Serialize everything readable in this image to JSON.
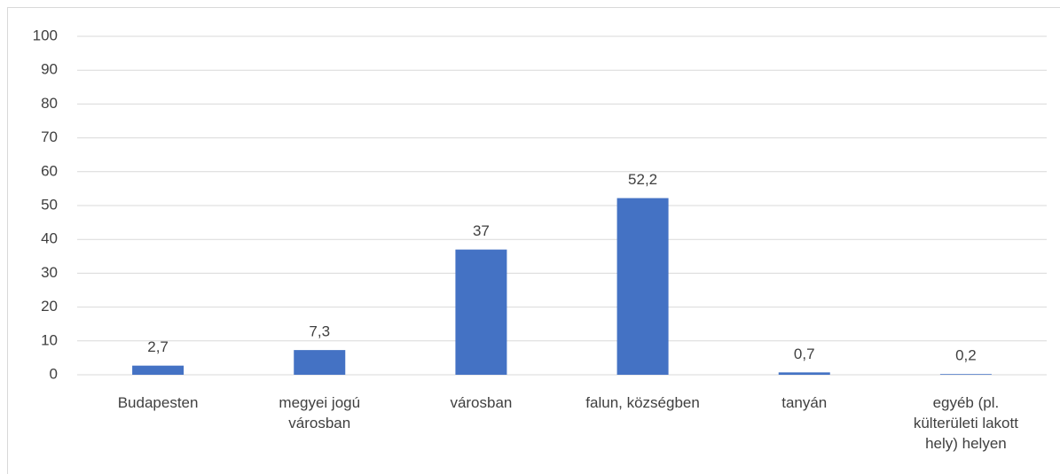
{
  "chart_data": {
    "type": "bar",
    "categories": [
      "Budapesten",
      "megyei jogú városban",
      "városban",
      "falun, községben",
      "tanyán",
      "egyéb (pl. külterületi lakott hely) helyen"
    ],
    "values": [
      2.7,
      7.3,
      37,
      52.2,
      0.7,
      0.2
    ],
    "value_labels": [
      "2,7",
      "7,3",
      "37",
      "52,2",
      "0,7",
      "0,2"
    ],
    "color": "#4472c4",
    "ylim": [
      0,
      100
    ],
    "yticks": [
      0,
      10,
      20,
      30,
      40,
      50,
      60,
      70,
      80,
      90,
      100
    ],
    "grid": true
  }
}
